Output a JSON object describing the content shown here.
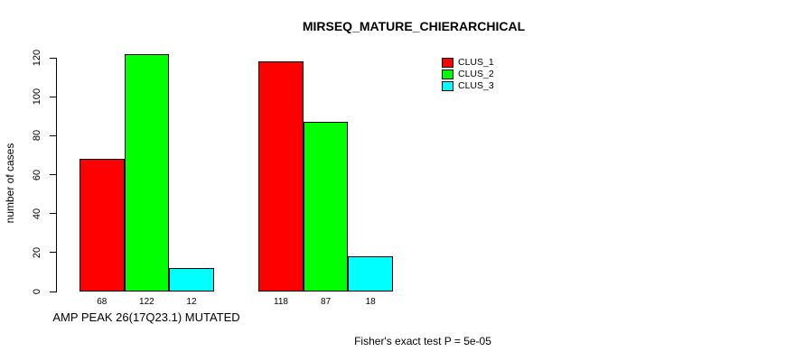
{
  "chart_data": {
    "type": "bar",
    "title": "MIRSEQ_MATURE_CHIERARCHICAL",
    "ylabel": "number of cases",
    "xlabel": "AMP PEAK 26(17Q23.1) MUTATED",
    "footnote": "Fisher's exact test P = 5e-05",
    "ylim": [
      0,
      120
    ],
    "yticks": [
      0,
      20,
      40,
      60,
      80,
      100,
      120
    ],
    "grid": false,
    "legend_position": "top-right",
    "n_groups": 2,
    "show_bar_values": true,
    "series": [
      {
        "name": "CLUS_1",
        "color": "#ff0000",
        "values": [
          68,
          118
        ]
      },
      {
        "name": "CLUS_2",
        "color": "#00ff00",
        "values": [
          122,
          87
        ]
      },
      {
        "name": "CLUS_3",
        "color": "#00ffff",
        "values": [
          12,
          18
        ]
      }
    ]
  },
  "colors": {
    "bar_border": "#000000",
    "axis": "#000000",
    "text": "#000000",
    "background": "#ffffff"
  }
}
